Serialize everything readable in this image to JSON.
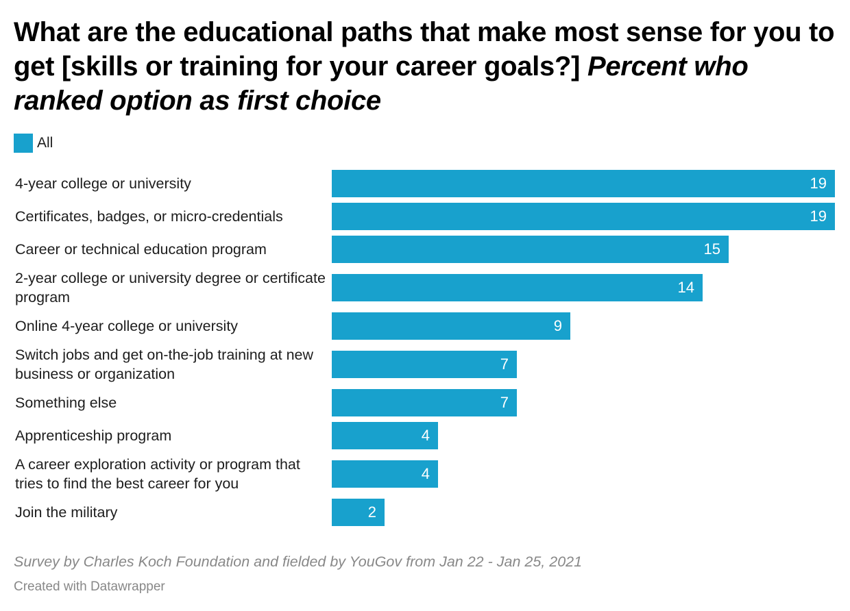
{
  "title": "What are the educational paths that make most sense for you to get [skills or training for your career goals?]",
  "subtitle": "Percent who ranked option as first choice",
  "legend": {
    "label": "All",
    "color": "#18a1cd"
  },
  "footer": {
    "source": "Survey by Charles Koch Foundation and fielded by YouGov from Jan 22 - Jan 25, 2021",
    "credit": "Created with Datawrapper"
  },
  "chart_data": {
    "type": "bar",
    "orientation": "horizontal",
    "categories": [
      "4-year college or university",
      "Certificates, badges, or micro-credentials",
      "Career or technical education program",
      "2-year college or university degree or certificate program",
      "Online 4-year college or university",
      "Switch jobs and get on-the-job training at new business or organization",
      "Something else",
      "Apprenticeship program",
      "A career exploration activity or program that tries to find the best career for you",
      "Join the military"
    ],
    "series": [
      {
        "name": "All",
        "values": [
          19,
          19,
          15,
          14,
          9,
          7,
          7,
          4,
          4,
          2
        ]
      }
    ],
    "xlim": [
      0,
      19
    ],
    "grid": false,
    "legend_position": "top-left",
    "data_labels": true
  }
}
